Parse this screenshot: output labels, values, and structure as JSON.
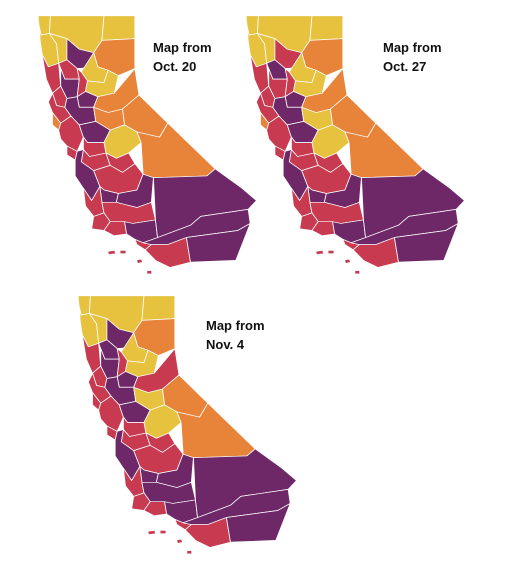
{
  "colors": {
    "widespread": "#6e2868",
    "substantial": "#c83a50",
    "moderate": "#e8843a",
    "minimal": "#e6c23e",
    "boundary": "#ffffff"
  },
  "maps": [
    {
      "caption_line1": "Map from",
      "caption_line2": "Oct. 20",
      "counties": [
        {
          "id": "del-norte",
          "tier": "minimal"
        },
        {
          "id": "siskiyou",
          "tier": "minimal"
        },
        {
          "id": "modoc",
          "tier": "minimal"
        },
        {
          "id": "humboldt",
          "tier": "minimal"
        },
        {
          "id": "trinity",
          "tier": "minimal"
        },
        {
          "id": "shasta",
          "tier": "widespread"
        },
        {
          "id": "lassen",
          "tier": "moderate"
        },
        {
          "id": "mendocino",
          "tier": "substantial"
        },
        {
          "id": "tehama",
          "tier": "substantial"
        },
        {
          "id": "plumas",
          "tier": "minimal"
        },
        {
          "id": "glenn-colusa",
          "tier": "widespread"
        },
        {
          "id": "butte",
          "tier": "substantial"
        },
        {
          "id": "sierra-nevada",
          "tier": "minimal"
        },
        {
          "id": "lake",
          "tier": "substantial"
        },
        {
          "id": "sutter-yuba",
          "tier": "widespread"
        },
        {
          "id": "placer-eldorado",
          "tier": "moderate"
        },
        {
          "id": "sonoma-napa",
          "tier": "substantial"
        },
        {
          "id": "yolo-sacramento",
          "tier": "widespread"
        },
        {
          "id": "amador-calaveras",
          "tier": "moderate"
        },
        {
          "id": "alpine-mono",
          "tier": "moderate"
        },
        {
          "id": "marin",
          "tier": "moderate"
        },
        {
          "id": "bay-area",
          "tier": "substantial"
        },
        {
          "id": "san-joaquin",
          "tier": "widespread"
        },
        {
          "id": "stanislaus",
          "tier": "substantial"
        },
        {
          "id": "tuolumne-mariposa",
          "tier": "minimal"
        },
        {
          "id": "santa-cruz",
          "tier": "substantial"
        },
        {
          "id": "merced",
          "tier": "substantial"
        },
        {
          "id": "madera",
          "tier": "substantial"
        },
        {
          "id": "monterey-sanbenito",
          "tier": "widespread"
        },
        {
          "id": "fresno",
          "tier": "substantial"
        },
        {
          "id": "inyo",
          "tier": "moderate"
        },
        {
          "id": "kings",
          "tier": "widespread"
        },
        {
          "id": "tulare",
          "tier": "widespread"
        },
        {
          "id": "san-luis-obispo",
          "tier": "substantial"
        },
        {
          "id": "kern",
          "tier": "substantial"
        },
        {
          "id": "santa-barbara",
          "tier": "substantial"
        },
        {
          "id": "ventura",
          "tier": "substantial"
        },
        {
          "id": "los-angeles",
          "tier": "widespread"
        },
        {
          "id": "san-bernardino",
          "tier": "widespread"
        },
        {
          "id": "orange",
          "tier": "substantial"
        },
        {
          "id": "riverside",
          "tier": "widespread"
        },
        {
          "id": "san-diego",
          "tier": "substantial"
        },
        {
          "id": "imperial",
          "tier": "widespread"
        }
      ]
    },
    {
      "caption_line1": "Map from",
      "caption_line2": "Oct. 27",
      "counties": [
        {
          "id": "del-norte",
          "tier": "minimal"
        },
        {
          "id": "siskiyou",
          "tier": "minimal"
        },
        {
          "id": "modoc",
          "tier": "minimal"
        },
        {
          "id": "humboldt",
          "tier": "minimal"
        },
        {
          "id": "trinity",
          "tier": "minimal"
        },
        {
          "id": "shasta",
          "tier": "substantial"
        },
        {
          "id": "lassen",
          "tier": "moderate"
        },
        {
          "id": "mendocino",
          "tier": "substantial"
        },
        {
          "id": "tehama",
          "tier": "widespread"
        },
        {
          "id": "plumas",
          "tier": "minimal"
        },
        {
          "id": "glenn-colusa",
          "tier": "substantial"
        },
        {
          "id": "butte",
          "tier": "substantial"
        },
        {
          "id": "sierra-nevada",
          "tier": "minimal"
        },
        {
          "id": "lake",
          "tier": "substantial"
        },
        {
          "id": "sutter-yuba",
          "tier": "widespread"
        },
        {
          "id": "placer-eldorado",
          "tier": "moderate"
        },
        {
          "id": "sonoma-napa",
          "tier": "substantial"
        },
        {
          "id": "yolo-sacramento",
          "tier": "widespread"
        },
        {
          "id": "amador-calaveras",
          "tier": "minimal"
        },
        {
          "id": "alpine-mono",
          "tier": "moderate"
        },
        {
          "id": "marin",
          "tier": "moderate"
        },
        {
          "id": "bay-area",
          "tier": "substantial"
        },
        {
          "id": "san-joaquin",
          "tier": "widespread"
        },
        {
          "id": "stanislaus",
          "tier": "substantial"
        },
        {
          "id": "tuolumne-mariposa",
          "tier": "minimal"
        },
        {
          "id": "santa-cruz",
          "tier": "substantial"
        },
        {
          "id": "merced",
          "tier": "substantial"
        },
        {
          "id": "madera",
          "tier": "substantial"
        },
        {
          "id": "monterey-sanbenito",
          "tier": "widespread"
        },
        {
          "id": "fresno",
          "tier": "substantial"
        },
        {
          "id": "inyo",
          "tier": "moderate"
        },
        {
          "id": "kings",
          "tier": "widespread"
        },
        {
          "id": "tulare",
          "tier": "widespread"
        },
        {
          "id": "san-luis-obispo",
          "tier": "substantial"
        },
        {
          "id": "kern",
          "tier": "substantial"
        },
        {
          "id": "santa-barbara",
          "tier": "substantial"
        },
        {
          "id": "ventura",
          "tier": "substantial"
        },
        {
          "id": "los-angeles",
          "tier": "widespread"
        },
        {
          "id": "san-bernardino",
          "tier": "widespread"
        },
        {
          "id": "orange",
          "tier": "substantial"
        },
        {
          "id": "riverside",
          "tier": "widespread"
        },
        {
          "id": "san-diego",
          "tier": "substantial"
        },
        {
          "id": "imperial",
          "tier": "widespread"
        }
      ]
    },
    {
      "caption_line1": "Map from",
      "caption_line2": "Nov. 4",
      "counties": [
        {
          "id": "del-norte",
          "tier": "minimal"
        },
        {
          "id": "siskiyou",
          "tier": "minimal"
        },
        {
          "id": "modoc",
          "tier": "minimal"
        },
        {
          "id": "humboldt",
          "tier": "minimal"
        },
        {
          "id": "trinity",
          "tier": "minimal"
        },
        {
          "id": "shasta",
          "tier": "widespread"
        },
        {
          "id": "lassen",
          "tier": "moderate"
        },
        {
          "id": "mendocino",
          "tier": "substantial"
        },
        {
          "id": "tehama",
          "tier": "widespread"
        },
        {
          "id": "plumas",
          "tier": "minimal"
        },
        {
          "id": "glenn-colusa",
          "tier": "widespread"
        },
        {
          "id": "butte",
          "tier": "substantial"
        },
        {
          "id": "sierra-nevada",
          "tier": "minimal"
        },
        {
          "id": "lake",
          "tier": "substantial"
        },
        {
          "id": "sutter-yuba",
          "tier": "widespread"
        },
        {
          "id": "placer-eldorado",
          "tier": "substantial"
        },
        {
          "id": "sonoma-napa",
          "tier": "substantial"
        },
        {
          "id": "yolo-sacramento",
          "tier": "widespread"
        },
        {
          "id": "amador-calaveras",
          "tier": "minimal"
        },
        {
          "id": "alpine-mono",
          "tier": "moderate"
        },
        {
          "id": "marin",
          "tier": "substantial"
        },
        {
          "id": "bay-area",
          "tier": "substantial"
        },
        {
          "id": "san-joaquin",
          "tier": "widespread"
        },
        {
          "id": "stanislaus",
          "tier": "substantial"
        },
        {
          "id": "tuolumne-mariposa",
          "tier": "minimal"
        },
        {
          "id": "santa-cruz",
          "tier": "substantial"
        },
        {
          "id": "merced",
          "tier": "substantial"
        },
        {
          "id": "madera",
          "tier": "substantial"
        },
        {
          "id": "monterey-sanbenito",
          "tier": "widespread"
        },
        {
          "id": "fresno",
          "tier": "substantial"
        },
        {
          "id": "inyo",
          "tier": "moderate"
        },
        {
          "id": "kings",
          "tier": "widespread"
        },
        {
          "id": "tulare",
          "tier": "widespread"
        },
        {
          "id": "san-luis-obispo",
          "tier": "substantial"
        },
        {
          "id": "kern",
          "tier": "widespread"
        },
        {
          "id": "santa-barbara",
          "tier": "substantial"
        },
        {
          "id": "ventura",
          "tier": "substantial"
        },
        {
          "id": "los-angeles",
          "tier": "widespread"
        },
        {
          "id": "san-bernardino",
          "tier": "widespread"
        },
        {
          "id": "orange",
          "tier": "substantial"
        },
        {
          "id": "riverside",
          "tier": "widespread"
        },
        {
          "id": "san-diego",
          "tier": "substantial"
        },
        {
          "id": "imperial",
          "tier": "widespread"
        }
      ]
    }
  ]
}
